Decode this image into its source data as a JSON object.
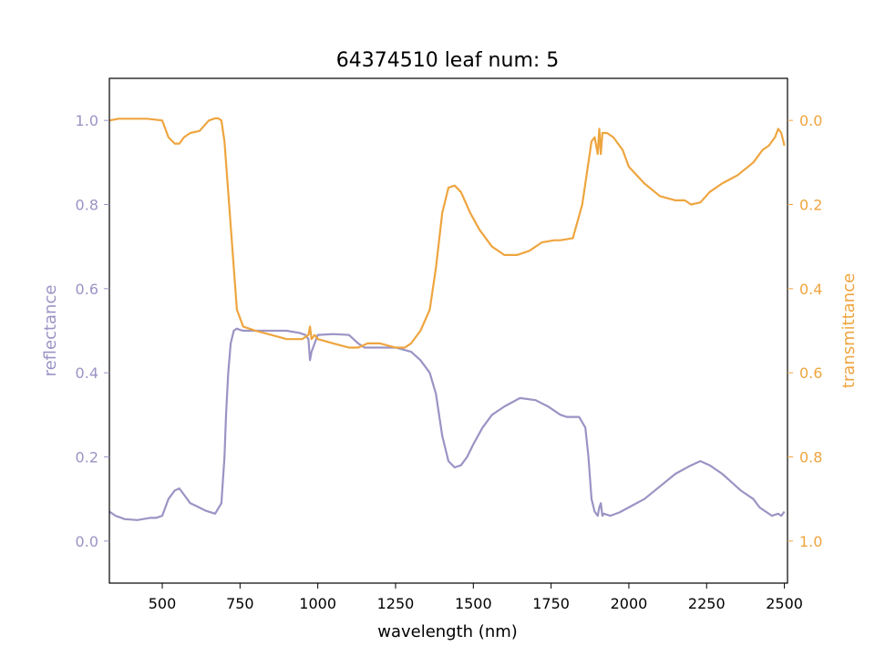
{
  "chart_data": {
    "type": "line",
    "title": "64374510 leaf num: 5",
    "xlabel": "wavelength (nm)",
    "xlim": [
      330,
      2510
    ],
    "x_ticks": [
      "500",
      "750",
      "1000",
      "1250",
      "1500",
      "1750",
      "2000",
      "2250",
      "2500"
    ],
    "x_tick_values": [
      500,
      750,
      1000,
      1250,
      1500,
      1750,
      2000,
      2250,
      2500
    ],
    "left_axis": {
      "label": "reflectance",
      "color": "#9a94c4",
      "ylim": [
        -0.1,
        1.1
      ],
      "ticks": [
        "0.0",
        "0.2",
        "0.4",
        "0.6",
        "0.8",
        "1.0"
      ],
      "tick_values": [
        0.0,
        0.2,
        0.4,
        0.6,
        0.8,
        1.0
      ]
    },
    "right_axis": {
      "label": "transmittance",
      "color": "#eea53f",
      "ylim": [
        1.1,
        -0.1
      ],
      "inverted": true,
      "ticks": [
        "0.0",
        "0.2",
        "0.4",
        "0.6",
        "0.8",
        "1.0"
      ],
      "tick_values": [
        0.0,
        0.2,
        0.4,
        0.6,
        0.8,
        1.0
      ]
    },
    "grid": false,
    "series": [
      {
        "axis": "left",
        "color": "#9a94c4",
        "x": [
          330,
          350,
          380,
          420,
          460,
          480,
          500,
          520,
          540,
          555,
          570,
          590,
          610,
          640,
          670,
          690,
          700,
          705,
          712,
          720,
          730,
          740,
          750,
          760,
          780,
          820,
          860,
          900,
          940,
          960,
          970,
          975,
          980,
          990,
          1000,
          1050,
          1100,
          1130,
          1150,
          1200,
          1250,
          1300,
          1330,
          1360,
          1380,
          1400,
          1420,
          1440,
          1460,
          1480,
          1500,
          1530,
          1560,
          1600,
          1650,
          1700,
          1740,
          1780,
          1800,
          1840,
          1860,
          1870,
          1880,
          1890,
          1900,
          1905,
          1910,
          1915,
          1920,
          1940,
          1970,
          2000,
          2050,
          2100,
          2150,
          2200,
          2230,
          2260,
          2280,
          2300,
          2330,
          2360,
          2380,
          2400,
          2420,
          2440,
          2460,
          2480,
          2490,
          2500
        ],
        "y": [
          0.07,
          0.06,
          0.052,
          0.05,
          0.055,
          0.055,
          0.06,
          0.1,
          0.12,
          0.125,
          0.11,
          0.09,
          0.083,
          0.072,
          0.065,
          0.09,
          0.2,
          0.3,
          0.4,
          0.47,
          0.5,
          0.505,
          0.502,
          0.5,
          0.5,
          0.5,
          0.5,
          0.5,
          0.495,
          0.49,
          0.48,
          0.43,
          0.45,
          0.47,
          0.49,
          0.492,
          0.49,
          0.47,
          0.46,
          0.46,
          0.46,
          0.45,
          0.43,
          0.4,
          0.35,
          0.25,
          0.19,
          0.175,
          0.18,
          0.2,
          0.23,
          0.27,
          0.3,
          0.32,
          0.34,
          0.335,
          0.32,
          0.3,
          0.295,
          0.295,
          0.27,
          0.2,
          0.1,
          0.07,
          0.06,
          0.08,
          0.09,
          0.06,
          0.065,
          0.06,
          0.068,
          0.08,
          0.1,
          0.13,
          0.16,
          0.18,
          0.19,
          0.18,
          0.17,
          0.16,
          0.14,
          0.12,
          0.11,
          0.1,
          0.08,
          0.07,
          0.06,
          0.065,
          0.06,
          0.07
        ]
      },
      {
        "axis": "right",
        "color": "#eea53f",
        "x": [
          330,
          360,
          400,
          450,
          500,
          520,
          540,
          555,
          570,
          590,
          620,
          650,
          670,
          680,
          690,
          700,
          720,
          740,
          760,
          800,
          850,
          900,
          950,
          970,
          975,
          980,
          990,
          1000,
          1050,
          1100,
          1130,
          1160,
          1200,
          1250,
          1280,
          1300,
          1330,
          1360,
          1380,
          1400,
          1420,
          1440,
          1460,
          1490,
          1520,
          1560,
          1600,
          1640,
          1680,
          1700,
          1720,
          1760,
          1780,
          1820,
          1850,
          1870,
          1880,
          1890,
          1900,
          1905,
          1910,
          1915,
          1920,
          1930,
          1950,
          1980,
          2000,
          2050,
          2100,
          2150,
          2180,
          2200,
          2230,
          2260,
          2300,
          2350,
          2400,
          2430,
          2450,
          2470,
          2480,
          2490,
          2500
        ],
        "y": [
          0.0,
          -0.004,
          -0.004,
          -0.004,
          0.0,
          0.04,
          0.055,
          0.055,
          0.04,
          0.03,
          0.025,
          0.0,
          -0.005,
          -0.005,
          0.0,
          0.05,
          0.25,
          0.45,
          0.49,
          0.5,
          0.51,
          0.52,
          0.52,
          0.51,
          0.49,
          0.52,
          0.51,
          0.52,
          0.53,
          0.54,
          0.54,
          0.53,
          0.53,
          0.54,
          0.54,
          0.53,
          0.5,
          0.45,
          0.35,
          0.22,
          0.16,
          0.155,
          0.17,
          0.22,
          0.26,
          0.3,
          0.32,
          0.32,
          0.31,
          0.3,
          0.29,
          0.285,
          0.285,
          0.28,
          0.2,
          0.1,
          0.05,
          0.04,
          0.08,
          0.02,
          0.08,
          0.03,
          0.03,
          0.03,
          0.04,
          0.07,
          0.11,
          0.15,
          0.18,
          0.19,
          0.19,
          0.2,
          0.195,
          0.17,
          0.15,
          0.13,
          0.1,
          0.07,
          0.06,
          0.04,
          0.02,
          0.03,
          0.06
        ]
      }
    ]
  }
}
